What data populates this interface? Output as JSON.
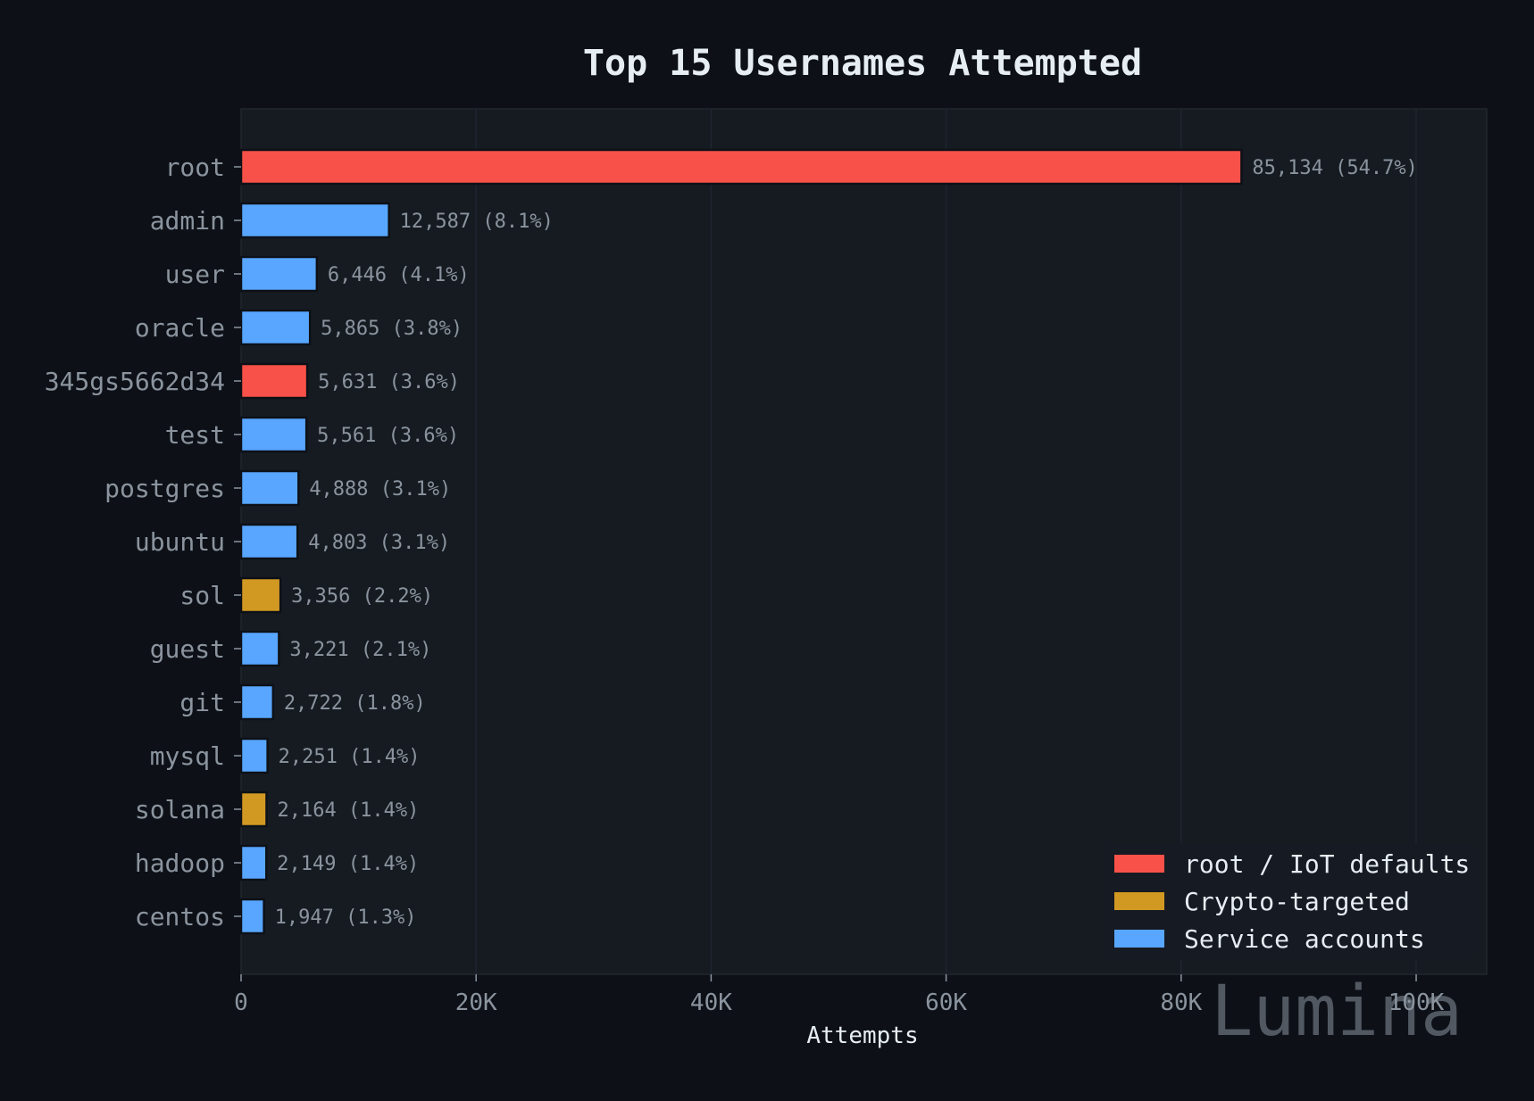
{
  "chart_data": {
    "type": "bar",
    "orientation": "horizontal",
    "title": "Top 15 Usernames Attempted",
    "xlabel": "Attempts",
    "ylabel": "",
    "xlim": [
      0,
      106000
    ],
    "xticks": [
      0,
      20000,
      40000,
      60000,
      80000,
      100000
    ],
    "xtick_labels": [
      "0",
      "20K",
      "40K",
      "60K",
      "80K",
      "100K"
    ],
    "grid": true,
    "legend_position": "bottom-right",
    "categories": [
      "root",
      "admin",
      "user",
      "oracle",
      "345gs5662d34",
      "test",
      "postgres",
      "ubuntu",
      "sol",
      "guest",
      "git",
      "mysql",
      "solana",
      "hadoop",
      "centos"
    ],
    "values": [
      85134,
      12587,
      6446,
      5865,
      5631,
      5561,
      4888,
      4803,
      3356,
      3221,
      2722,
      2251,
      2164,
      2149,
      1947
    ],
    "value_labels": [
      "85,134",
      "12,587",
      "6,446",
      "5,865",
      "5,631",
      "5,561",
      "4,888",
      "4,803",
      "3,356",
      "3,221",
      "2,722",
      "2,251",
      "2,164",
      "2,149",
      "1,947"
    ],
    "percent_labels": [
      "(54.7%)",
      "(8.1%)",
      "(4.1%)",
      "(3.8%)",
      "(3.6%)",
      "(3.6%)",
      "(3.1%)",
      "(3.1%)",
      "(2.2%)",
      "(2.1%)",
      "(1.8%)",
      "(1.4%)",
      "(1.4%)",
      "(1.4%)",
      "(1.3%)"
    ],
    "groups": [
      "root",
      "service",
      "service",
      "service",
      "root",
      "service",
      "service",
      "service",
      "crypto",
      "service",
      "service",
      "service",
      "crypto",
      "service",
      "service"
    ],
    "legend": [
      {
        "key": "root",
        "label": "root / IoT defaults",
        "color": "#f85149"
      },
      {
        "key": "crypto",
        "label": "Crypto-targeted",
        "color": "#d29922"
      },
      {
        "key": "service",
        "label": "Service accounts",
        "color": "#58a6ff"
      }
    ]
  },
  "watermark": "Lumina",
  "colors": {
    "background": "#0d1117",
    "plot_background": "#161b22",
    "text": "#e6edf3",
    "muted_text": "#8b949e",
    "grid": "#21262d"
  }
}
